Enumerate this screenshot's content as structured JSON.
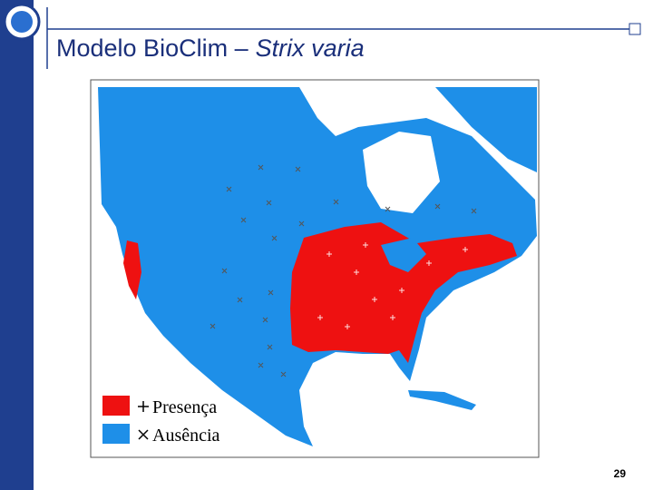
{
  "header": {
    "title": "Modelo BioClim –",
    "title_species": "Strix varia"
  },
  "legend": {
    "presence": "Presença",
    "absence": "Ausência"
  },
  "footer": {
    "page_number": "29"
  }
}
